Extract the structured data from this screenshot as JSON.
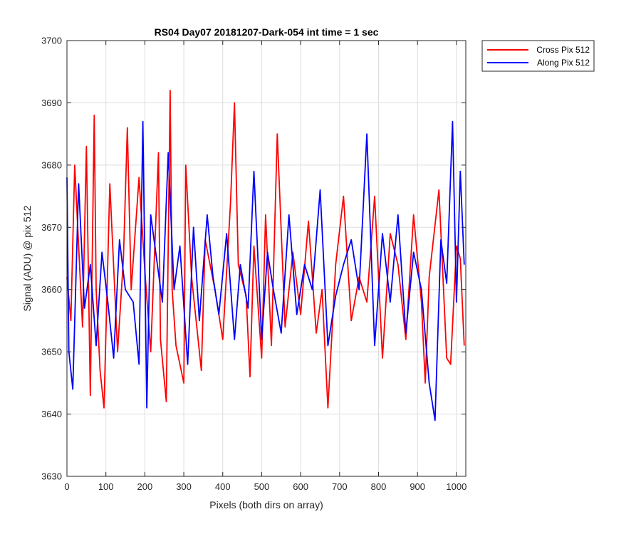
{
  "chart_data": {
    "type": "line",
    "title": "RS04 Day07 20181207-Dark-054 int time = 1 sec",
    "xlabel": "Pixels (both dirs on array)",
    "ylabel": "Signal (ADU) @ pix 512",
    "xlim": [
      0,
      1024
    ],
    "ylim": [
      3630,
      3700
    ],
    "xticks": [
      0,
      100,
      200,
      300,
      400,
      500,
      600,
      700,
      800,
      900,
      1000
    ],
    "yticks": [
      3630,
      3640,
      3650,
      3660,
      3670,
      3680,
      3690,
      3700
    ],
    "grid": true,
    "legend_position": "outside-top-right",
    "series": [
      {
        "name": "Cross Pix 512",
        "color": "#ff0000",
        "description": "noisy signal, mean ~3666, approx range 3641-3692",
        "x": [
          0,
          10,
          20,
          40,
          50,
          60,
          70,
          75,
          85,
          95,
          110,
          130,
          145,
          155,
          165,
          185,
          200,
          215,
          235,
          240,
          255,
          265,
          270,
          280,
          300,
          305,
          320,
          345,
          355,
          380,
          400,
          420,
          430,
          440,
          460,
          470,
          480,
          500,
          510,
          525,
          540,
          560,
          580,
          600,
          620,
          640,
          655,
          670,
          690,
          710,
          730,
          750,
          770,
          790,
          810,
          830,
          850,
          870,
          890,
          910,
          920,
          930,
          955,
          975,
          985,
          1000,
          1010,
          1020
        ],
        "y": [
          3662,
          3655,
          3680,
          3654,
          3683,
          3643,
          3688,
          3660,
          3647,
          3641,
          3677,
          3650,
          3665,
          3686,
          3660,
          3678,
          3663,
          3650,
          3682,
          3652,
          3642,
          3692,
          3660,
          3651,
          3645,
          3680,
          3662,
          3647,
          3668,
          3660,
          3652,
          3674,
          3690,
          3664,
          3659,
          3646,
          3667,
          3649,
          3672,
          3651,
          3685,
          3654,
          3666,
          3656,
          3671,
          3653,
          3660,
          3641,
          3664,
          3675,
          3655,
          3662,
          3658,
          3675,
          3649,
          3669,
          3664,
          3652,
          3672,
          3658,
          3645,
          3662,
          3676,
          3649,
          3648,
          3667,
          3665,
          3651
        ]
      },
      {
        "name": "Along Pix 512",
        "color": "#0000ff",
        "description": "noisy signal, mean ~3666, approx range 3639-3687",
        "x": [
          0,
          5,
          15,
          30,
          45,
          60,
          75,
          90,
          105,
          120,
          135,
          150,
          170,
          185,
          195,
          205,
          215,
          230,
          245,
          260,
          275,
          290,
          310,
          325,
          340,
          360,
          375,
          390,
          410,
          430,
          445,
          465,
          480,
          500,
          515,
          530,
          550,
          570,
          590,
          610,
          630,
          650,
          670,
          690,
          710,
          730,
          750,
          770,
          790,
          810,
          830,
          850,
          870,
          890,
          910,
          930,
          945,
          960,
          975,
          990,
          1000,
          1010,
          1020
        ],
        "y": [
          3678,
          3650,
          3644,
          3677,
          3657,
          3664,
          3651,
          3666,
          3658,
          3649,
          3668,
          3660,
          3658,
          3648,
          3687,
          3641,
          3672,
          3665,
          3658,
          3682,
          3660,
          3667,
          3648,
          3670,
          3655,
          3672,
          3662,
          3656,
          3669,
          3652,
          3664,
          3657,
          3679,
          3652,
          3666,
          3660,
          3653,
          3672,
          3656,
          3664,
          3660,
          3676,
          3651,
          3659,
          3664,
          3668,
          3660,
          3685,
          3651,
          3669,
          3658,
          3672,
          3653,
          3666,
          3660,
          3645,
          3639,
          3668,
          3661,
          3687,
          3658,
          3679,
          3664
        ]
      }
    ]
  }
}
